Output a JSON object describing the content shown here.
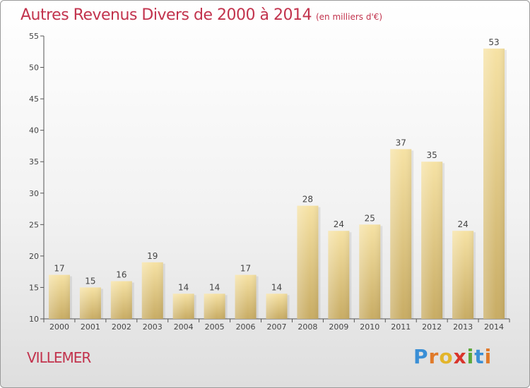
{
  "title": "Autres Revenus Divers de 2000 à 2014",
  "unit_note": "(en milliers d'€)",
  "place": "VILLEMER",
  "logo": {
    "text": "Proxiti",
    "letters": [
      "P",
      "r",
      "o",
      "x",
      "i",
      "t",
      "i"
    ]
  },
  "colors": {
    "title": "#c2334d",
    "bar_light": "#f5dfa0",
    "bar_dark": "#c9ae66",
    "axis": "#555555"
  },
  "chart_data": {
    "type": "bar",
    "title": "Autres Revenus Divers de 2000 à 2014",
    "subtitle": "(en milliers d'€)",
    "xlabel": "",
    "ylabel": "",
    "categories": [
      "2000",
      "2001",
      "2002",
      "2003",
      "2004",
      "2005",
      "2006",
      "2007",
      "2008",
      "2009",
      "2010",
      "2011",
      "2012",
      "2013",
      "2014"
    ],
    "values": [
      17,
      15,
      16,
      19,
      14,
      14,
      17,
      14,
      28,
      24,
      25,
      37,
      35,
      24,
      53
    ],
    "ylim": [
      10,
      55
    ],
    "yticks": [
      10,
      15,
      20,
      25,
      30,
      35,
      40,
      45,
      50,
      55
    ],
    "grid": false,
    "legend": "none"
  }
}
